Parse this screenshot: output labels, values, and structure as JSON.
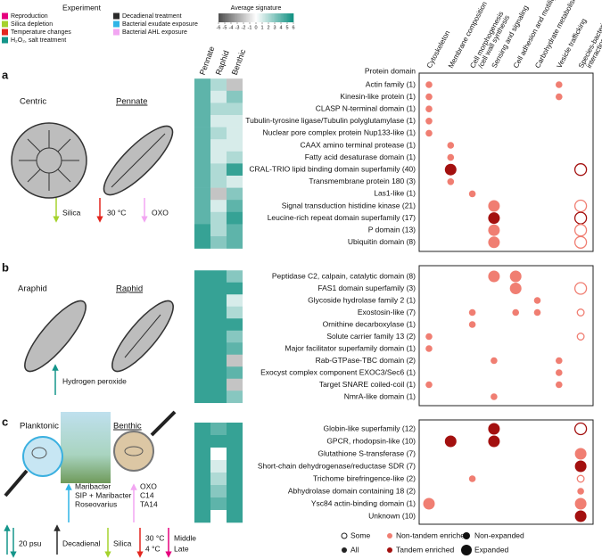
{
  "experiment_legend": {
    "title": "Experiment",
    "items": [
      {
        "label": "Reproduction",
        "color": "#e6007e"
      },
      {
        "label": "Silica depletion",
        "color": "#a5d22d"
      },
      {
        "label": "Temperature changes",
        "color": "#e3261f"
      },
      {
        "label": "H₂O₂, salt treatment",
        "color": "#14958a"
      },
      {
        "label": "Decadienal treatment",
        "color": "#2b2b2b"
      },
      {
        "label": "Bacterial exudate exposure",
        "color": "#2fb4e6"
      },
      {
        "label": "Bacterial AHL exposure",
        "color": "#f2a6f2"
      }
    ]
  },
  "colorbar": {
    "title": "Average signature",
    "range": [
      -6,
      6
    ],
    "ticks": [
      -6,
      -5,
      -4,
      -3,
      -2,
      -1,
      0,
      1,
      2,
      3,
      4,
      5,
      6
    ],
    "low_color": "#4d4d4d",
    "mid_color": "#ffffff",
    "high_color": "#0e8f80"
  },
  "heatmap_columns": [
    "Pennate",
    "Raphid",
    "Benthic"
  ],
  "category_columns": [
    [
      "Cytoskeleton"
    ],
    [
      "Membrane composition"
    ],
    [
      "Cell morphogenesis",
      "/cell wall synthesis"
    ],
    [
      "Sensing and signaling"
    ],
    [
      "Cell adhesion and motility"
    ],
    [
      "Carbohydrate metabolism"
    ],
    [
      "Vesicle trafficking"
    ],
    [
      "Species-bacteria",
      "interaction"
    ]
  ],
  "protein_domain_header": "Protein domain",
  "dot_colors": {
    "non-tandem": "#f07e72",
    "tandem": "#a3100f"
  },
  "panels": [
    {
      "letter": "a",
      "illustration": {
        "centric": "Centric",
        "pennate": "Pennate",
        "silica": "Silica",
        "temp": "30 °C",
        "oxo": "OXO"
      },
      "rows": [
        {
          "domain": "Actin family (1)",
          "signature": [
            4,
            2,
            -2
          ],
          "dots": [
            {
              "col": 0,
              "fill": "all",
              "kind": "non-tandem",
              "size": "non-expanded"
            },
            {
              "col": 6,
              "fill": "all",
              "kind": "non-tandem",
              "size": "non-expanded"
            }
          ]
        },
        {
          "domain": "Kinesin-like protein (1)",
          "signature": [
            4,
            1,
            3
          ],
          "dots": [
            {
              "col": 0,
              "fill": "all",
              "kind": "non-tandem",
              "size": "non-expanded"
            },
            {
              "col": 6,
              "fill": "all",
              "kind": "non-tandem",
              "size": "non-expanded"
            }
          ]
        },
        {
          "domain": "CLASP N-terminal domain (1)",
          "signature": [
            4,
            2,
            2
          ],
          "dots": [
            {
              "col": 0,
              "fill": "all",
              "kind": "non-tandem",
              "size": "non-expanded"
            }
          ]
        },
        {
          "domain": "Tubulin-tyrosine ligase/Tubulin polyglutamylase (1)",
          "signature": [
            4,
            1,
            1
          ],
          "dots": [
            {
              "col": 0,
              "fill": "all",
              "kind": "non-tandem",
              "size": "non-expanded"
            }
          ]
        },
        {
          "domain": "Nuclear pore complex protein Nup133-like (1)",
          "signature": [
            4,
            2,
            1
          ],
          "dots": [
            {
              "col": 0,
              "fill": "all",
              "kind": "non-tandem",
              "size": "non-expanded"
            }
          ]
        },
        {
          "domain": "CAAX amino terminal protease (1)",
          "signature": [
            4,
            1,
            1
          ],
          "dots": [
            {
              "col": 1,
              "fill": "all",
              "kind": "non-tandem",
              "size": "non-expanded"
            }
          ]
        },
        {
          "domain": "Fatty acid desaturase domain (1)",
          "signature": [
            4,
            1,
            2
          ],
          "dots": [
            {
              "col": 1,
              "fill": "all",
              "kind": "non-tandem",
              "size": "non-expanded"
            }
          ]
        },
        {
          "domain": "CRAL-TRIO lipid binding domain superfamily (40)",
          "signature": [
            4,
            2,
            5
          ],
          "dots": [
            {
              "col": 1,
              "fill": "all",
              "kind": "tandem",
              "size": "expanded"
            },
            {
              "col": 7,
              "fill": "some",
              "kind": "tandem",
              "size": "expanded"
            }
          ]
        },
        {
          "domain": "Transmembrane protein 180 (3)",
          "signature": [
            4,
            2,
            1
          ],
          "dots": [
            {
              "col": 1,
              "fill": "all",
              "kind": "non-tandem",
              "size": "non-expanded"
            }
          ]
        },
        {
          "domain": "Las1-like (1)",
          "signature": [
            4,
            -2,
            3
          ],
          "dots": [
            {
              "col": 2,
              "fill": "all",
              "kind": "non-tandem",
              "size": "non-expanded"
            }
          ]
        },
        {
          "domain": "Signal transduction histidine kinase (21)",
          "signature": [
            4,
            1,
            4
          ],
          "dots": [
            {
              "col": 3,
              "fill": "all",
              "kind": "non-tandem",
              "size": "expanded"
            },
            {
              "col": 7,
              "fill": "some",
              "kind": "non-tandem",
              "size": "expanded"
            }
          ]
        },
        {
          "domain": "Leucine-rich repeat domain superfamily (17)",
          "signature": [
            4,
            2,
            5
          ],
          "dots": [
            {
              "col": 3,
              "fill": "all",
              "kind": "tandem",
              "size": "expanded"
            },
            {
              "col": 7,
              "fill": "some",
              "kind": "tandem",
              "size": "expanded"
            }
          ]
        },
        {
          "domain": "P domain (13)",
          "signature": [
            5,
            2,
            4
          ],
          "dots": [
            {
              "col": 3,
              "fill": "all",
              "kind": "non-tandem",
              "size": "expanded"
            },
            {
              "col": 7,
              "fill": "some",
              "kind": "non-tandem",
              "size": "expanded"
            }
          ]
        },
        {
          "domain": "Ubiquitin domain (8)",
          "signature": [
            5,
            3,
            4
          ],
          "dots": [
            {
              "col": 3,
              "fill": "all",
              "kind": "non-tandem",
              "size": "expanded"
            },
            {
              "col": 7,
              "fill": "some",
              "kind": "non-tandem",
              "size": "expanded"
            }
          ]
        }
      ]
    },
    {
      "letter": "b",
      "illustration": {
        "araphid": "Araphid",
        "raphid": "Raphid",
        "peroxide": "Hydrogen peroxide"
      },
      "rows": [
        {
          "domain": "Peptidase C2, calpain, catalytic domain (8)",
          "signature": [
            5,
            5,
            3
          ],
          "dots": [
            {
              "col": 3,
              "fill": "all",
              "kind": "non-tandem",
              "size": "expanded"
            },
            {
              "col": 4,
              "fill": "all",
              "kind": "non-tandem",
              "size": "expanded"
            }
          ]
        },
        {
          "domain": "FAS1 domain superfamily (3)",
          "signature": [
            5,
            5,
            5
          ],
          "dots": [
            {
              "col": 4,
              "fill": "all",
              "kind": "non-tandem",
              "size": "expanded"
            },
            {
              "col": 7,
              "fill": "some",
              "kind": "non-tandem",
              "size": "expanded"
            }
          ]
        },
        {
          "domain": "Glycoside hydrolase family 2 (1)",
          "signature": [
            5,
            5,
            1
          ],
          "dots": [
            {
              "col": 5,
              "fill": "all",
              "kind": "non-tandem",
              "size": "non-expanded"
            }
          ]
        },
        {
          "domain": "Exostosin-like (7)",
          "signature": [
            5,
            5,
            2
          ],
          "dots": [
            {
              "col": 2,
              "fill": "all",
              "kind": "non-tandem",
              "size": "non-expanded"
            },
            {
              "col": 4,
              "fill": "all",
              "kind": "non-tandem",
              "size": "non-expanded"
            },
            {
              "col": 5,
              "fill": "all",
              "kind": "non-tandem",
              "size": "non-expanded"
            },
            {
              "col": 7,
              "fill": "some",
              "kind": "non-tandem",
              "size": "non-expanded"
            }
          ]
        },
        {
          "domain": "Ornithine decarboxylase (1)",
          "signature": [
            5,
            5,
            5
          ],
          "dots": [
            {
              "col": 2,
              "fill": "all",
              "kind": "non-tandem",
              "size": "non-expanded"
            }
          ]
        },
        {
          "domain": "Solute carrier family 13 (2)",
          "signature": [
            5,
            5,
            3
          ],
          "dots": [
            {
              "col": 0,
              "fill": "all",
              "kind": "non-tandem",
              "size": "non-expanded"
            },
            {
              "col": 7,
              "fill": "some",
              "kind": "non-tandem",
              "size": "non-expanded"
            }
          ]
        },
        {
          "domain": "Major facilitator superfamily domain (1)",
          "signature": [
            5,
            5,
            4
          ],
          "dots": [
            {
              "col": 0,
              "fill": "all",
              "kind": "non-tandem",
              "size": "non-expanded"
            }
          ]
        },
        {
          "domain": "Rab-GTPase-TBC domain (2)",
          "signature": [
            5,
            5,
            -2
          ],
          "dots": [
            {
              "col": 3,
              "fill": "all",
              "kind": "non-tandem",
              "size": "non-expanded"
            },
            {
              "col": 6,
              "fill": "all",
              "kind": "non-tandem",
              "size": "non-expanded"
            }
          ]
        },
        {
          "domain": "Exocyst complex component EXOC3/Sec6 (1)",
          "signature": [
            5,
            5,
            4
          ],
          "dots": [
            {
              "col": 6,
              "fill": "all",
              "kind": "non-tandem",
              "size": "non-expanded"
            }
          ]
        },
        {
          "domain": "Target SNARE coiled-coil (1)",
          "signature": [
            5,
            5,
            -2
          ],
          "dots": [
            {
              "col": 0,
              "fill": "all",
              "kind": "non-tandem",
              "size": "non-expanded"
            },
            {
              "col": 6,
              "fill": "all",
              "kind": "non-tandem",
              "size": "non-expanded"
            }
          ]
        },
        {
          "domain": "NmrA-like domain (1)",
          "signature": [
            5,
            5,
            3
          ],
          "dots": [
            {
              "col": 3,
              "fill": "all",
              "kind": "non-tandem",
              "size": "non-expanded"
            }
          ]
        }
      ]
    },
    {
      "letter": "c",
      "illustration": {
        "planktonic": "Planktonic",
        "benthic": "Benthic",
        "bact1": "Maribacter",
        "bact2": "SIP + Maribacter",
        "bact3": "Roseovarius",
        "ahl1": "OXO",
        "ahl2": "C14",
        "ahl3": "TA14",
        "psu": "20 psu",
        "decadienal": "Decadienal",
        "silica": "Silica",
        "temp1": "30 °C",
        "temp2": "4 °C",
        "phase1": "Middle",
        "phase2": "Late"
      },
      "rows": [
        {
          "domain": "Globin-like superfamily (12)",
          "signature": [
            5,
            4,
            5
          ],
          "dots": [
            {
              "col": 3,
              "fill": "all",
              "kind": "tandem",
              "size": "expanded"
            },
            {
              "col": 7,
              "fill": "some",
              "kind": "tandem",
              "size": "expanded"
            }
          ]
        },
        {
          "domain": "GPCR, rhodopsin-like (10)",
          "signature": [
            5,
            5,
            5
          ],
          "dots": [
            {
              "col": 1,
              "fill": "all",
              "kind": "tandem",
              "size": "expanded"
            },
            {
              "col": 3,
              "fill": "all",
              "kind": "tandem",
              "size": "expanded"
            }
          ]
        },
        {
          "domain": "Glutathione S-transferase (7)",
          "signature": [
            5,
            0,
            5
          ],
          "dots": [
            {
              "col": 7,
              "fill": "all",
              "kind": "non-tandem",
              "size": "expanded"
            }
          ]
        },
        {
          "domain": "Short-chain dehydrogenase/reductase SDR (7)",
          "signature": [
            5,
            1,
            5
          ],
          "dots": [
            {
              "col": 7,
              "fill": "all",
              "kind": "tandem",
              "size": "expanded"
            }
          ]
        },
        {
          "domain": "Trichome birefringence-like (2)",
          "signature": [
            5,
            2,
            5
          ],
          "dots": [
            {
              "col": 2,
              "fill": "all",
              "kind": "non-tandem",
              "size": "non-expanded"
            },
            {
              "col": 7,
              "fill": "some",
              "kind": "non-tandem",
              "size": "non-expanded"
            }
          ]
        },
        {
          "domain": "Abhydrolase domain containing 18 (2)",
          "signature": [
            5,
            3,
            5
          ],
          "dots": [
            {
              "col": 7,
              "fill": "all",
              "kind": "non-tandem",
              "size": "non-expanded"
            }
          ]
        },
        {
          "domain": "Ysc84 actin-binding domain (1)",
          "signature": [
            5,
            4,
            5
          ],
          "dots": [
            {
              "col": 0,
              "fill": "all",
              "kind": "non-tandem",
              "size": "expanded"
            },
            {
              "col": 7,
              "fill": "all",
              "kind": "non-tandem",
              "size": "expanded"
            }
          ]
        },
        {
          "domain": "Unknown (10)",
          "signature": [
            5,
            0,
            5
          ],
          "dots": [
            {
              "col": 7,
              "fill": "all",
              "kind": "tandem",
              "size": "expanded"
            }
          ]
        }
      ]
    }
  ],
  "dot_legend": {
    "some": "Some",
    "all": "All",
    "non_tandem": "Non-tandem enriched",
    "tandem": "Tandem enriched",
    "non_expanded": "Non-expanded",
    "expanded": "Expanded"
  }
}
